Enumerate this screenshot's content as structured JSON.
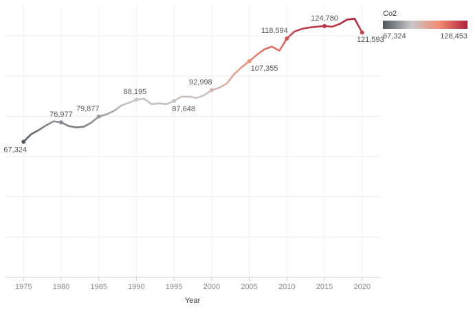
{
  "chart_data": {
    "type": "line",
    "x_label": "Year",
    "x": [
      1975,
      1976,
      1977,
      1978,
      1979,
      1980,
      1981,
      1982,
      1983,
      1984,
      1985,
      1986,
      1987,
      1988,
      1989,
      1990,
      1991,
      1992,
      1993,
      1994,
      1995,
      1996,
      1997,
      1998,
      1999,
      2000,
      2001,
      2002,
      2003,
      2004,
      2005,
      2006,
      2007,
      2008,
      2009,
      2010,
      2011,
      2012,
      2013,
      2014,
      2015,
      2016,
      2017,
      2018,
      2019,
      2020
    ],
    "series": [
      {
        "name": "Co2",
        "values": [
          67324,
          71060,
          73100,
          75480,
          77520,
          76977,
          75140,
          74460,
          74800,
          76840,
          79877,
          80920,
          82620,
          85340,
          86700,
          88195,
          88740,
          86020,
          86360,
          86020,
          87648,
          89760,
          89760,
          89080,
          90440,
          92998,
          94180,
          96220,
          100980,
          104380,
          107355,
          110500,
          113220,
          114580,
          112540,
          118594,
          122060,
          123420,
          124100,
          124440,
          124780,
          124440,
          125800,
          128000,
          128453,
          121593
        ],
        "value_labels": [
          "67,324",
          null,
          null,
          null,
          null,
          "76,977",
          null,
          null,
          null,
          null,
          "79,877",
          null,
          null,
          null,
          null,
          "88,195",
          null,
          null,
          null,
          null,
          "87,648",
          null,
          null,
          null,
          null,
          "92,998",
          null,
          null,
          null,
          null,
          "107,355",
          null,
          null,
          null,
          null,
          "118,594",
          null,
          null,
          null,
          null,
          "124,780",
          null,
          null,
          null,
          null,
          "121,593"
        ]
      }
    ],
    "color_legend": {
      "title": "Co2",
      "range": [
        {
          "value": 67324,
          "label": "67,324"
        },
        {
          "value": 128453,
          "label": "128,453"
        }
      ],
      "colors": [
        "#4e565e",
        "#c8c8c8",
        "#f08c72",
        "#b2203b"
      ]
    },
    "xlim": [
      1972.6,
      2022.4
    ],
    "xticks": [
      1975,
      1980,
      1985,
      1990,
      1995,
      2000,
      2005,
      2010,
      2015,
      2020
    ],
    "ylim": [
      0,
      135000
    ],
    "yticks": [
      0,
      20000,
      40000,
      60000,
      80000,
      100000,
      120000
    ],
    "grid": true
  }
}
